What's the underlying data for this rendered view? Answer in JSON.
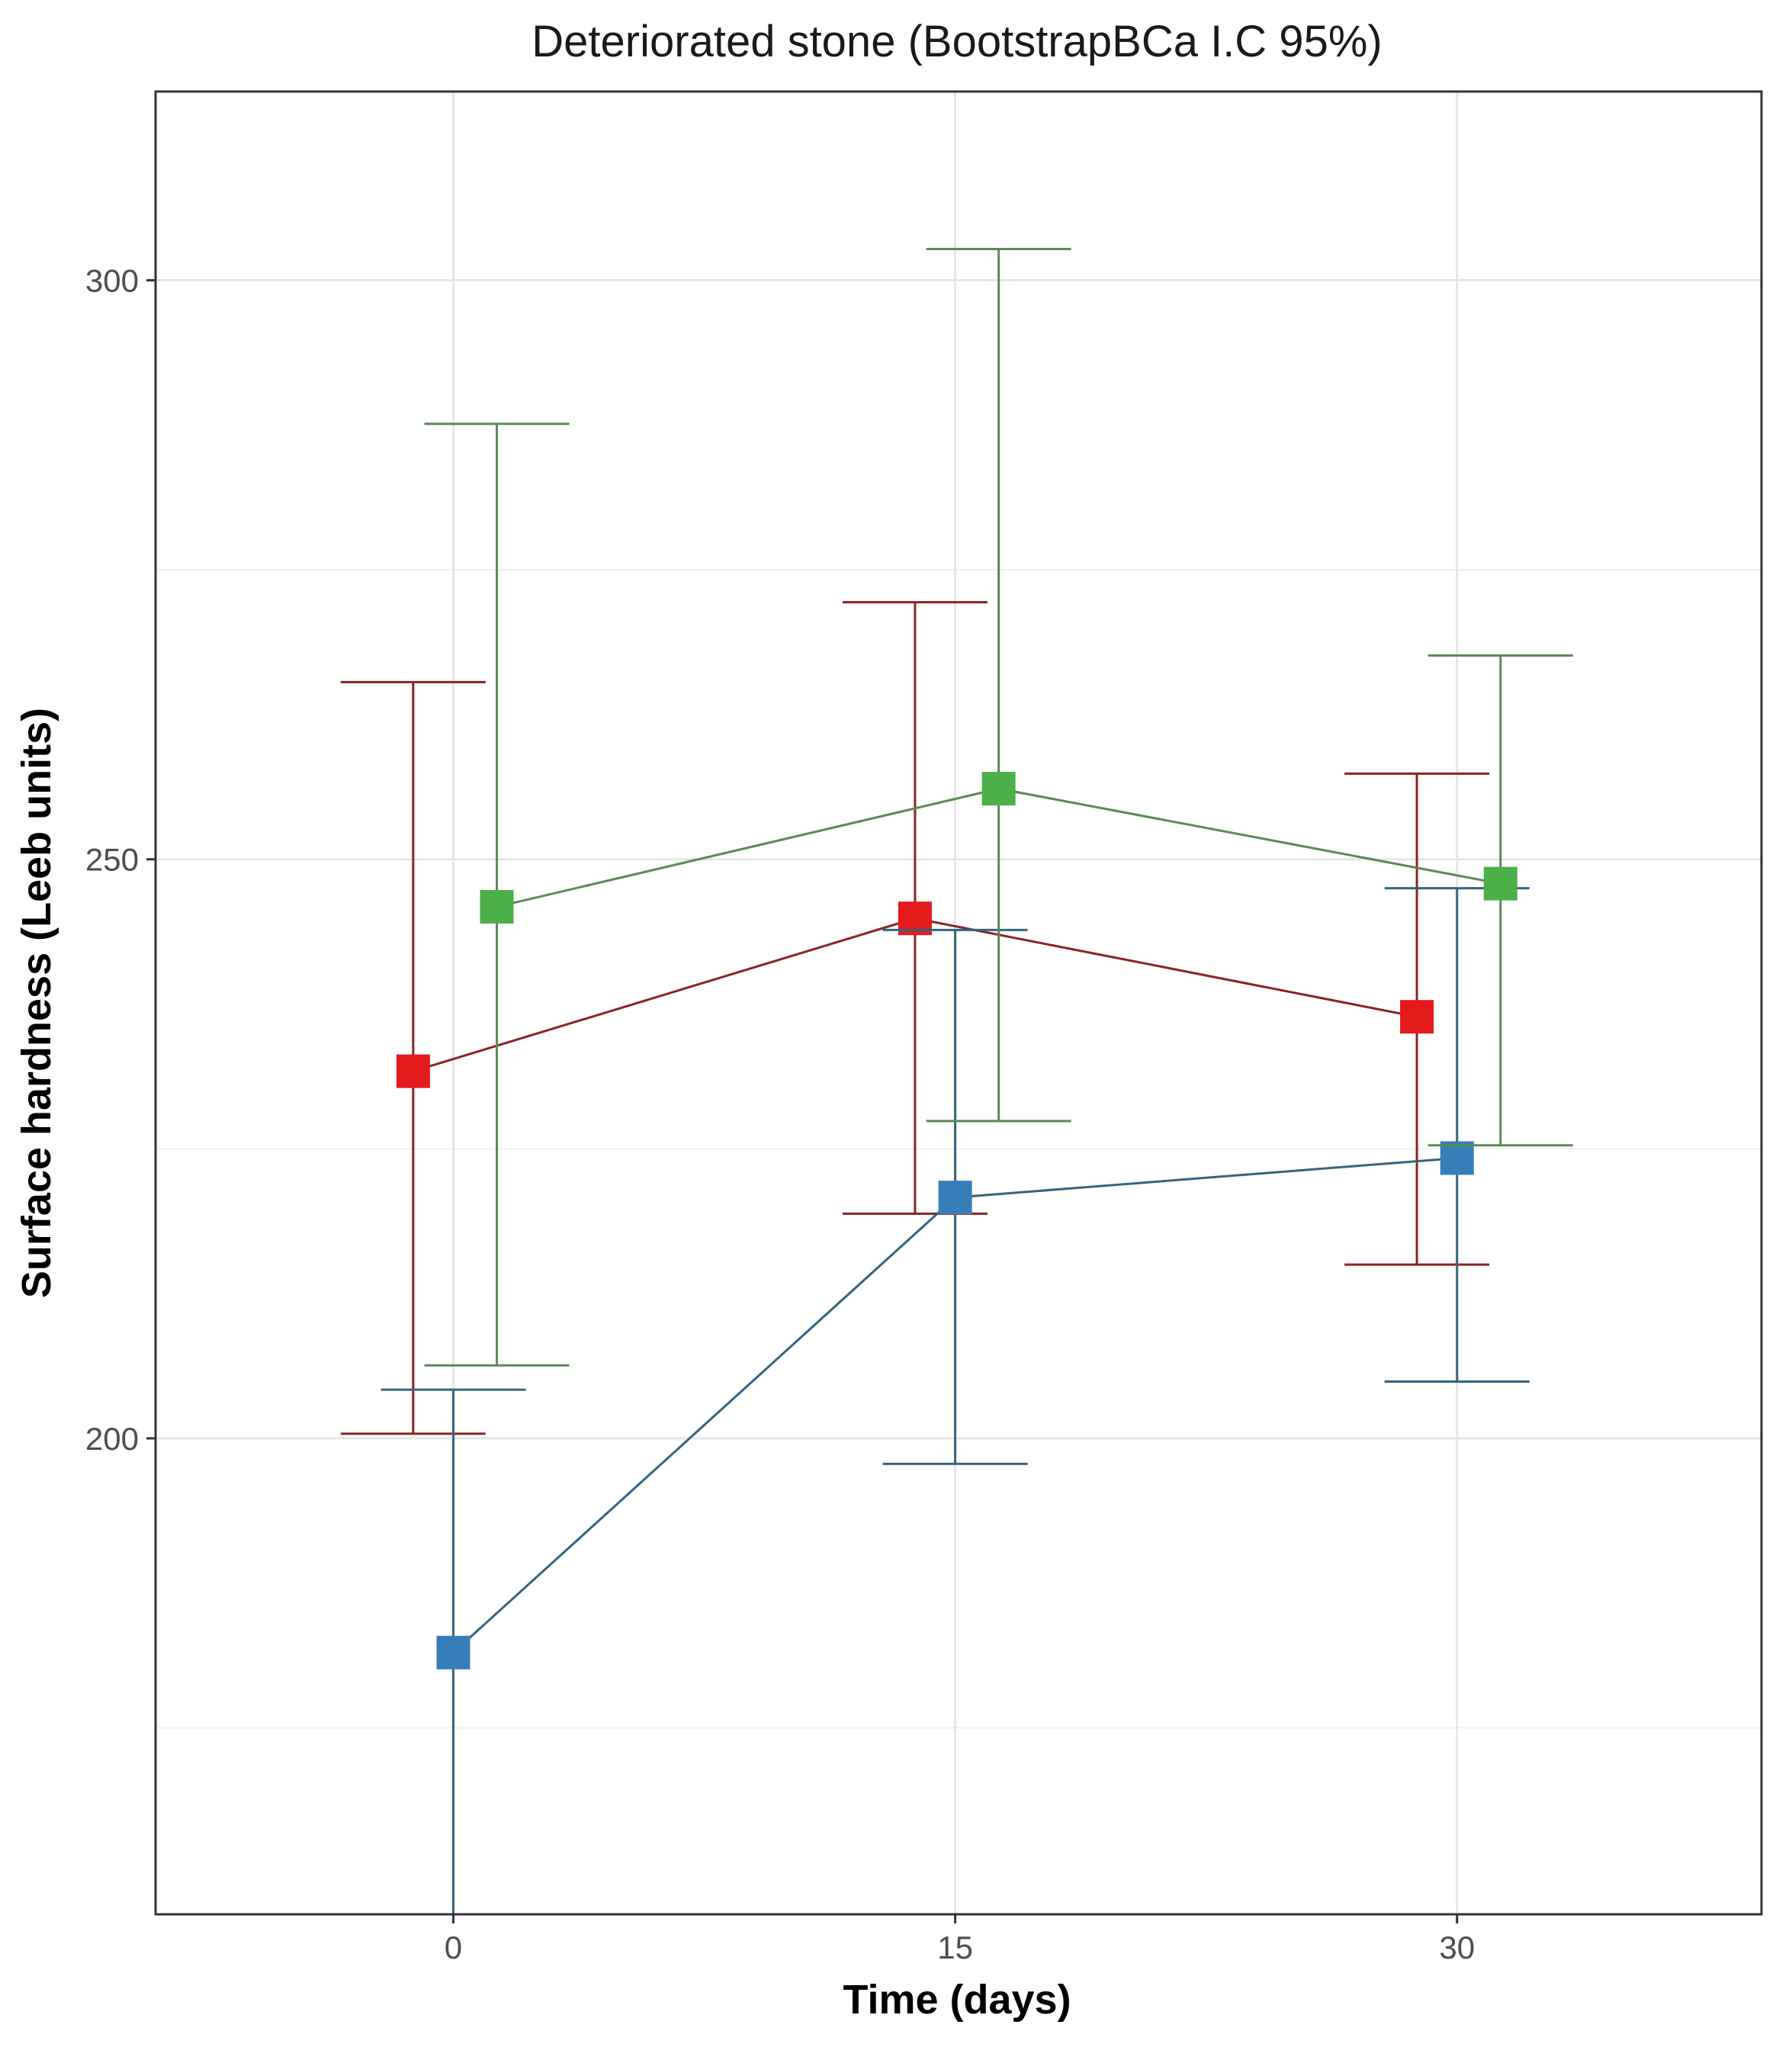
{
  "chart_data": {
    "type": "scatter",
    "title": "Deteriorated stone  (BootstrapBCa I.C 95%)",
    "xlabel": "Time (days)",
    "ylabel": "Surface hardness (Leeb units)",
    "x_ticks": [
      0,
      15,
      30
    ],
    "y_ticks": [
      200,
      250,
      300
    ],
    "xlim": [
      -8.9,
      39.1
    ],
    "ylim": [
      158.9,
      316.3
    ],
    "grid": true,
    "legend": "none",
    "series": [
      {
        "color": "#E41A1C",
        "line_color": "#8B2323",
        "x_offset": -1.2,
        "points": [
          {
            "x": 0,
            "y": 231.7,
            "lower": 200.4,
            "upper": 265.3
          },
          {
            "x": 15,
            "y": 244.9,
            "lower": 219.4,
            "upper": 272.2
          },
          {
            "x": 30,
            "y": 236.4,
            "lower": 215.0,
            "upper": 257.4
          }
        ]
      },
      {
        "color": "#377EB8",
        "line_color": "#35647F",
        "x_offset": 0,
        "points": [
          {
            "x": 0,
            "y": 181.5,
            "lower": 158.9,
            "upper": 204.2
          },
          {
            "x": 15,
            "y": 220.8,
            "lower": 197.8,
            "upper": 243.9
          },
          {
            "x": 30,
            "y": 224.2,
            "lower": 204.9,
            "upper": 247.5
          }
        ]
      },
      {
        "color": "#4DAF4A",
        "line_color": "#5A8A55",
        "x_offset": 1.3,
        "points": [
          {
            "x": 0,
            "y": 245.9,
            "lower": 206.3,
            "upper": 287.6
          },
          {
            "x": 15,
            "y": 256.1,
            "lower": 227.4,
            "upper": 302.7
          },
          {
            "x": 30,
            "y": 247.9,
            "lower": 225.3,
            "upper": 267.6
          }
        ]
      }
    ]
  }
}
